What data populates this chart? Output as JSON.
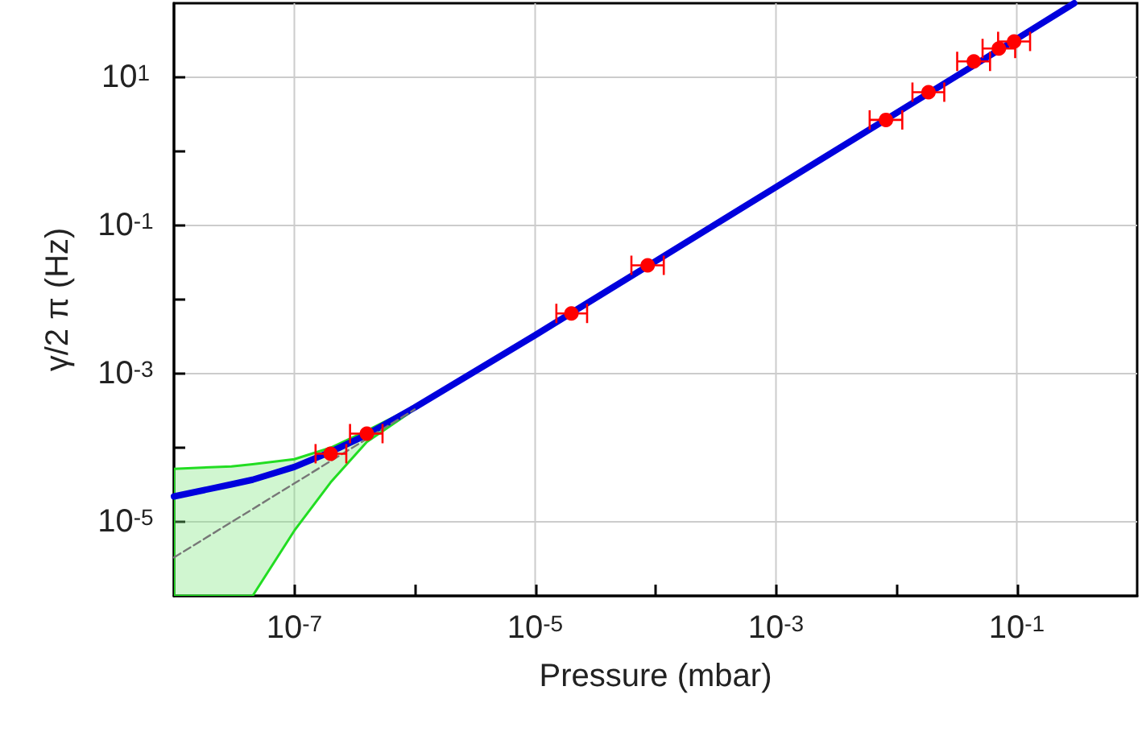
{
  "chart_data": {
    "type": "scatter",
    "xlabel": "Pressure (mbar)",
    "ylabel": "γ/2 π (Hz)",
    "log": "xy",
    "grid": true,
    "marker": "circle",
    "xlim": [
      1e-08,
      1
    ],
    "ylim": [
      1e-06,
      100
    ],
    "xticks": [
      {
        "value": 1e-07,
        "label": "10$^{-7}$"
      },
      {
        "value": 1e-06,
        "label": null
      },
      {
        "value": 1e-05,
        "label": "10$^{-5}$"
      },
      {
        "value": 0.0001,
        "label": null
      },
      {
        "value": 0.001,
        "label": "10$^{-3}$"
      },
      {
        "value": 0.01,
        "label": null
      },
      {
        "value": 0.1,
        "label": "10$^{-1}$"
      }
    ],
    "yticks": [
      {
        "value": 1e-05,
        "label": "10$^{-5}$"
      },
      {
        "value": 0.0001,
        "label": null
      },
      {
        "value": 0.001,
        "label": "10$^{-3}$"
      },
      {
        "value": 0.01,
        "label": null
      },
      {
        "value": 0.1,
        "label": "10$^{-1}$"
      },
      {
        "value": 1,
        "label": null
      },
      {
        "value": 10,
        "label": "10$^{1}$"
      }
    ],
    "series": [
      {
        "type": "line",
        "color": "#0000dd",
        "marker": "none",
        "x": [
          1e-08,
          3e-08,
          4.5e-08,
          1e-07,
          2e-07,
          4e-07,
          1e-06,
          1e-05,
          0.0001,
          0.001,
          0.01,
          0.1,
          0.3
        ],
        "values": [
          2.2e-05,
          3.2e-05,
          3.7e-05,
          5.5e-05,
          8.8e-05,
          0.00015,
          0.00035,
          0.0033,
          0.033,
          0.33,
          3.3,
          33,
          100
        ],
        "lower": [
          1e-06,
          1e-06,
          1e-06,
          7.6e-06,
          3.4e-05,
          0.00012,
          0.00033,
          0.0033,
          0.033,
          0.33,
          3.3,
          33,
          100
        ],
        "upper": [
          5.2e-05,
          5.6e-05,
          6e-05,
          7e-05,
          0.0001,
          0.00017,
          0.00036,
          0.0033,
          0.033,
          0.33,
          3.3,
          33,
          100
        ]
      },
      {
        "type": "line",
        "color": "#777777",
        "marker": "none",
        "line_style": "dashed",
        "x": [
          1e-08,
          1e-07,
          1e-06
        ],
        "values": [
          3.3e-06,
          3.3e-05,
          0.00033
        ]
      },
      {
        "color": "#ff0000",
        "x": [
          2e-07,
          4e-07,
          2e-05,
          8.6e-05,
          0.0082,
          0.0185,
          0.044,
          0.071,
          0.095
        ],
        "values": [
          8.3e-05,
          0.000155,
          0.0065,
          0.029,
          2.66,
          6.3,
          16.4,
          24.5,
          30.5
        ],
        "xerrors": [
          [
            1.5e-07,
            2.7e-07
          ],
          [
            2.9e-07,
            5.4e-07
          ],
          [
            1.5e-05,
            2.7e-05
          ],
          [
            6.3e-05,
            0.000117
          ],
          [
            0.006,
            0.0112
          ],
          [
            0.0136,
            0.025
          ],
          [
            0.032,
            0.06
          ],
          [
            0.052,
            0.097
          ],
          [
            0.07,
            0.129
          ]
        ]
      }
    ]
  }
}
